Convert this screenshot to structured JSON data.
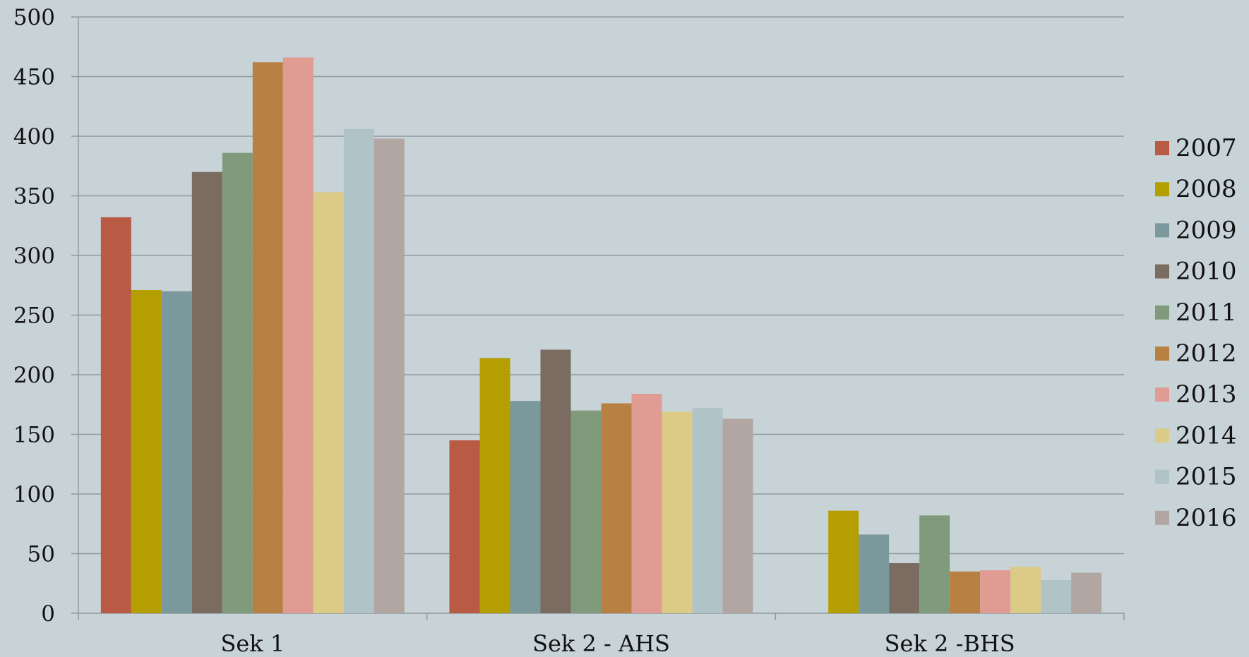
{
  "chart_data": {
    "type": "bar",
    "title": "",
    "xlabel": "",
    "ylabel": "",
    "categories": [
      "Sek 1",
      "Sek 2 - AHS",
      "Sek 2 -BHS"
    ],
    "ylim": [
      0,
      500
    ],
    "yticks": [
      0,
      50,
      100,
      150,
      200,
      250,
      300,
      350,
      400,
      450,
      500
    ],
    "grid": true,
    "legend_position": "right",
    "series": [
      {
        "name": "2007",
        "color": "#b95a44",
        "values": [
          332,
          145,
          0
        ]
      },
      {
        "name": "2008",
        "color": "#b59f00",
        "values": [
          271,
          214,
          86
        ]
      },
      {
        "name": "2009",
        "color": "#7b989c",
        "values": [
          270,
          178,
          66
        ]
      },
      {
        "name": "2010",
        "color": "#7a6c61",
        "values": [
          370,
          221,
          42
        ]
      },
      {
        "name": "2011",
        "color": "#7f9b7c",
        "values": [
          386,
          170,
          82
        ]
      },
      {
        "name": "2012",
        "color": "#b98043",
        "values": [
          462,
          176,
          35
        ]
      },
      {
        "name": "2013",
        "color": "#e09b92",
        "values": [
          466,
          184,
          36
        ]
      },
      {
        "name": "2014",
        "color": "#dbcb87",
        "values": [
          353,
          169,
          39
        ]
      },
      {
        "name": "2015",
        "color": "#b0c3c7",
        "values": [
          406,
          172,
          28
        ]
      },
      {
        "name": "2016",
        "color": "#b1a6a1",
        "values": [
          398,
          163,
          34
        ]
      }
    ]
  }
}
